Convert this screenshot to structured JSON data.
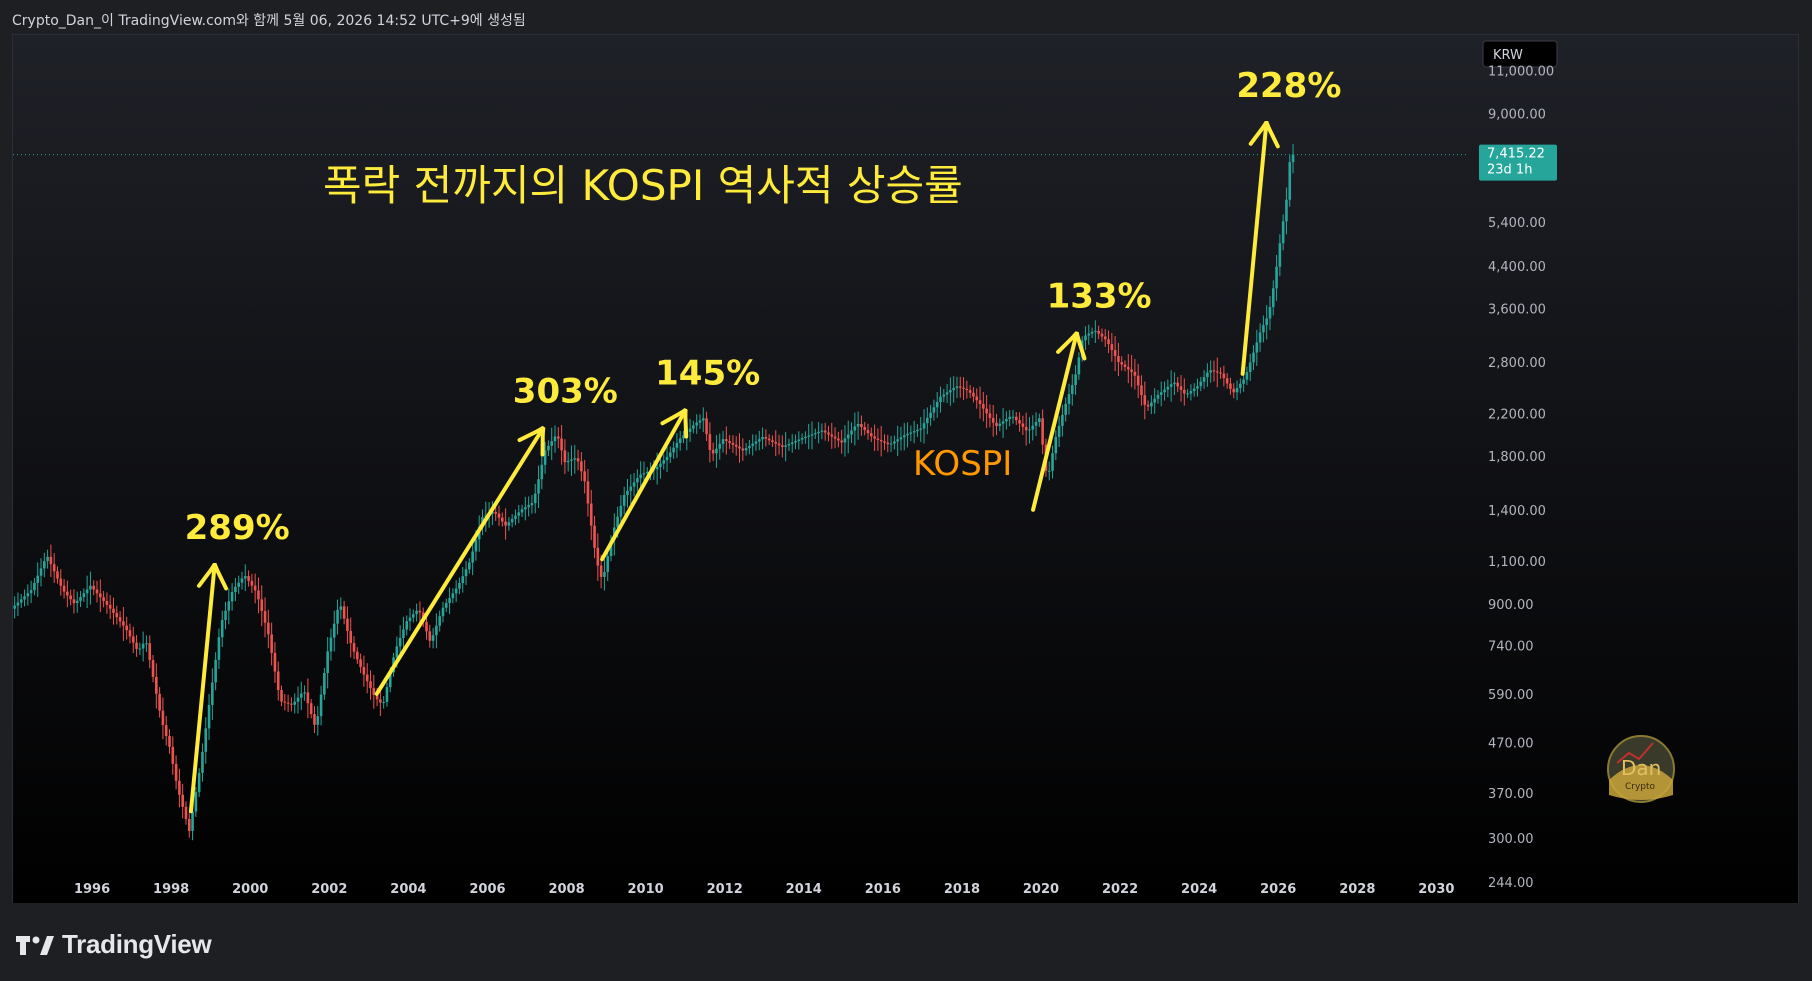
{
  "header": {
    "caption": "Crypto_Dan_이 TradingView.com와 함께 5월 06, 2026 14:52 UTC+9에 생성됨"
  },
  "footer": {
    "brand": "TradingView"
  },
  "colors": {
    "up": "#26a69a",
    "down": "#ef5350",
    "annotation": "#ffeb3b",
    "series_label": "#ff9800",
    "price_badge": "#26a69a"
  },
  "chart_data": {
    "type": "candlestick",
    "title": "폭락 전까지의 KOSPI 역사적 상승률",
    "series_label": "KOSPI",
    "currency": "KRW",
    "y_scale": "log",
    "ylim": [
      220,
      13000
    ],
    "xlim": [
      1994.0,
      2030.8
    ],
    "y_ticks": [
      "11,000.00",
      "9,000.00",
      "5,400.00",
      "4,400.00",
      "3,600.00",
      "2,800.00",
      "2,200.00",
      "1,800.00",
      "1,400.00",
      "1,100.00",
      "900.00",
      "740.00",
      "590.00",
      "470.00",
      "370.00",
      "300.00",
      "244.00"
    ],
    "x_ticks": [
      "1996",
      "1998",
      "2000",
      "2002",
      "2004",
      "2006",
      "2008",
      "2010",
      "2012",
      "2014",
      "2016",
      "2018",
      "2020",
      "2022",
      "2024",
      "2026",
      "2028",
      "2030"
    ],
    "last_price": {
      "value": "7,415.22",
      "countdown": "23d 1h"
    },
    "path_points": [
      [
        1994.0,
        880
      ],
      [
        1994.5,
        960
      ],
      [
        1994.9,
        1130
      ],
      [
        1995.3,
        960
      ],
      [
        1995.6,
        900
      ],
      [
        1996.0,
        980
      ],
      [
        1996.5,
        880
      ],
      [
        1996.9,
        800
      ],
      [
        1997.2,
        720
      ],
      [
        1997.4,
        760
      ],
      [
        1997.8,
        520
      ],
      [
        1998.0,
        460
      ],
      [
        1998.2,
        380
      ],
      [
        1998.5,
        310
      ],
      [
        1998.8,
        430
      ],
      [
        1999.0,
        560
      ],
      [
        1999.3,
        820
      ],
      [
        1999.6,
        960
      ],
      [
        1999.9,
        1030
      ],
      [
        2000.2,
        950
      ],
      [
        2000.5,
        780
      ],
      [
        2000.8,
        570
      ],
      [
        2001.1,
        560
      ],
      [
        2001.4,
        600
      ],
      [
        2001.7,
        500
      ],
      [
        2002.0,
        720
      ],
      [
        2002.3,
        910
      ],
      [
        2002.6,
        740
      ],
      [
        2002.9,
        650
      ],
      [
        2003.2,
        580
      ],
      [
        2003.4,
        560
      ],
      [
        2003.7,
        720
      ],
      [
        2004.0,
        830
      ],
      [
        2004.3,
        880
      ],
      [
        2004.6,
        750
      ],
      [
        2004.9,
        880
      ],
      [
        2005.3,
        980
      ],
      [
        2005.6,
        1100
      ],
      [
        2005.9,
        1350
      ],
      [
        2006.2,
        1390
      ],
      [
        2006.5,
        1300
      ],
      [
        2006.9,
        1400
      ],
      [
        2007.2,
        1450
      ],
      [
        2007.5,
        1850
      ],
      [
        2007.8,
        2000
      ],
      [
        2008.0,
        1750
      ],
      [
        2008.3,
        1790
      ],
      [
        2008.5,
        1600
      ],
      [
        2008.8,
        1100
      ],
      [
        2008.95,
        1000
      ],
      [
        2009.2,
        1250
      ],
      [
        2009.5,
        1500
      ],
      [
        2009.9,
        1650
      ],
      [
        2010.3,
        1700
      ],
      [
        2010.6,
        1800
      ],
      [
        2010.9,
        1950
      ],
      [
        2011.3,
        2100
      ],
      [
        2011.5,
        2150
      ],
      [
        2011.7,
        1800
      ],
      [
        2012.0,
        1950
      ],
      [
        2012.5,
        1850
      ],
      [
        2013.0,
        1970
      ],
      [
        2013.5,
        1880
      ],
      [
        2014.0,
        1960
      ],
      [
        2014.5,
        2030
      ],
      [
        2015.0,
        1920
      ],
      [
        2015.4,
        2100
      ],
      [
        2015.8,
        1960
      ],
      [
        2016.2,
        1900
      ],
      [
        2016.6,
        1990
      ],
      [
        2017.0,
        2050
      ],
      [
        2017.5,
        2380
      ],
      [
        2017.9,
        2500
      ],
      [
        2018.2,
        2450
      ],
      [
        2018.5,
        2300
      ],
      [
        2018.9,
        2070
      ],
      [
        2019.3,
        2180
      ],
      [
        2019.7,
        2020
      ],
      [
        2020.0,
        2150
      ],
      [
        2020.2,
        1600
      ],
      [
        2020.4,
        1950
      ],
      [
        2020.7,
        2350
      ],
      [
        2020.9,
        2600
      ],
      [
        2021.1,
        3150
      ],
      [
        2021.4,
        3250
      ],
      [
        2021.7,
        3100
      ],
      [
        2022.0,
        2800
      ],
      [
        2022.4,
        2650
      ],
      [
        2022.7,
        2250
      ],
      [
        2023.0,
        2400
      ],
      [
        2023.4,
        2550
      ],
      [
        2023.7,
        2400
      ],
      [
        2024.0,
        2500
      ],
      [
        2024.3,
        2700
      ],
      [
        2024.6,
        2650
      ],
      [
        2024.9,
        2420
      ],
      [
        2025.2,
        2600
      ],
      [
        2025.4,
        2900
      ],
      [
        2025.6,
        3250
      ],
      [
        2025.8,
        3500
      ],
      [
        2025.95,
        4100
      ],
      [
        2026.1,
        5000
      ],
      [
        2026.25,
        6000
      ],
      [
        2026.35,
        7415
      ]
    ],
    "annotations": [
      {
        "label": "289%",
        "from": [
          1998.5,
          340
        ],
        "to": [
          1999.1,
          1080
        ]
      },
      {
        "label": "303%",
        "from": [
          2003.2,
          590
        ],
        "to": [
          2007.4,
          2050
        ]
      },
      {
        "label": "145%",
        "from": [
          2008.9,
          1110
        ],
        "to": [
          2011.0,
          2230
        ]
      },
      {
        "label": "133%",
        "from": [
          2019.8,
          1400
        ],
        "to": [
          2020.9,
          3200
        ]
      },
      {
        "label": "228%",
        "from": [
          2025.1,
          2650
        ],
        "to": [
          2025.7,
          8600
        ]
      }
    ]
  }
}
